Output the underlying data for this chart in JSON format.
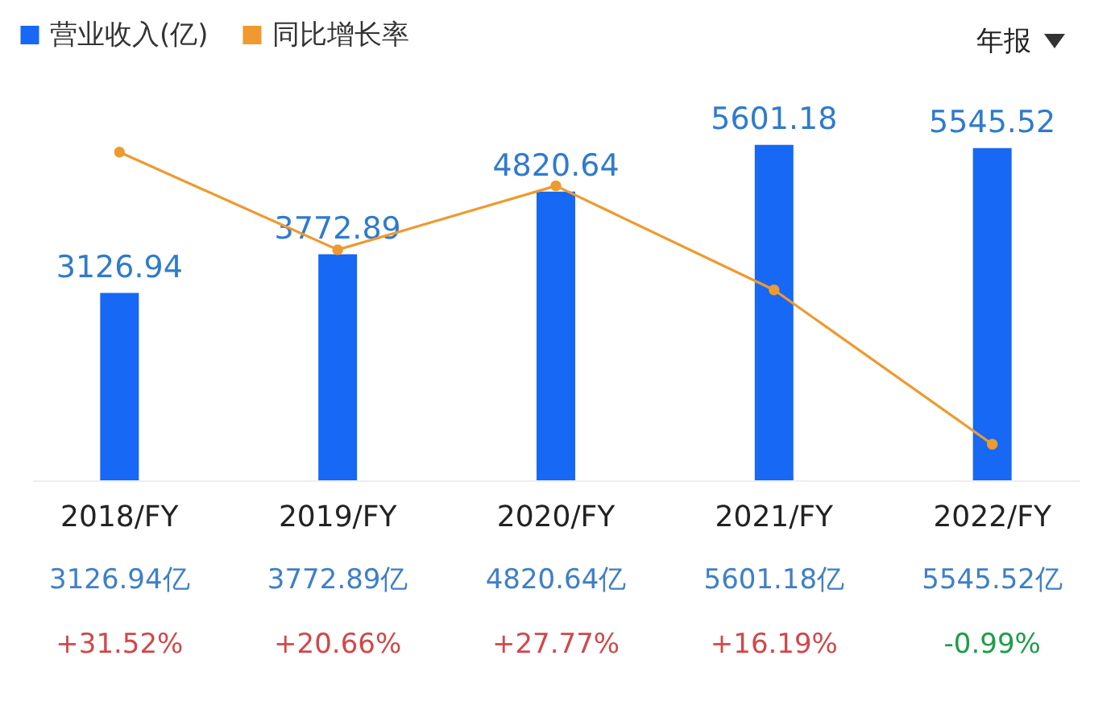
{
  "chart_data": {
    "type": "bar",
    "categories": [
      "2018/FY",
      "2019/FY",
      "2020/FY",
      "2021/FY",
      "2022/FY"
    ],
    "series": [
      {
        "name": "营业收入(亿)",
        "color": "#1668f5",
        "values": [
          3126.94,
          3772.89,
          4820.64,
          5601.18,
          5545.52
        ],
        "value_labels": [
          "3126.94",
          "3772.89",
          "4820.64",
          "5601.18",
          "5545.52"
        ]
      },
      {
        "name": "同比增长率",
        "type": "line",
        "axis": "y2",
        "color": "#ee9a2e",
        "values": [
          31.52,
          20.66,
          27.77,
          16.19,
          -0.99
        ],
        "value_labels": [
          "+31.52%",
          "+20.66%",
          "+27.77%",
          "+16.19%",
          "-0.99%"
        ]
      }
    ],
    "marker": "circle",
    "legend": "top left",
    "tick_labels": "x",
    "annotations": [
      "年报",
      "3126.94亿",
      "3772.89亿",
      "4820.64亿",
      "5601.18亿",
      "5545.52亿"
    ]
  }
}
